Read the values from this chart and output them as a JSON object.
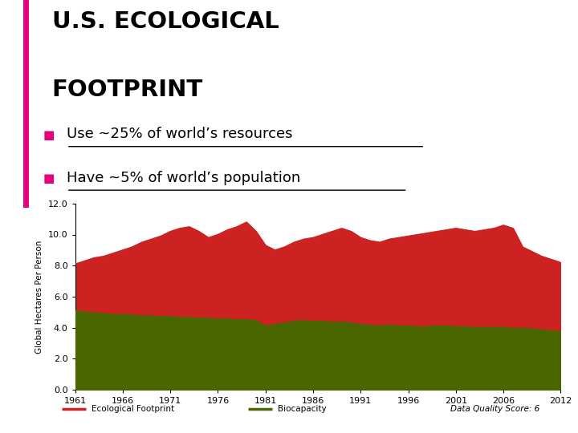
{
  "title_line1": "U.S. ECOLOGICAL",
  "title_line2": "FOOTPRINT",
  "bullet1": "Use ~25% of world’s resources",
  "bullet2": "Have ~5% of world’s population",
  "bullet_color": "#e6007e",
  "ylabel": "Global Hectares Per Person",
  "xlabel_ticks": [
    1961,
    1966,
    1971,
    1976,
    1981,
    1986,
    1991,
    1996,
    2001,
    2006,
    2012
  ],
  "ylim": [
    0.0,
    12.0
  ],
  "yticks": [
    0.0,
    2.0,
    4.0,
    6.0,
    8.0,
    10.0,
    12.0
  ],
  "legend_footprint_label": "Ecological Footprint",
  "legend_biocap_label": "Biocapacity",
  "data_quality_text": "Data Quality Score: 6",
  "footprint_color": "#cc2222",
  "biocapacity_color": "#4a6600",
  "years": [
    1961,
    1962,
    1963,
    1964,
    1965,
    1966,
    1967,
    1968,
    1969,
    1970,
    1971,
    1972,
    1973,
    1974,
    1975,
    1976,
    1977,
    1978,
    1979,
    1980,
    1981,
    1982,
    1983,
    1984,
    1985,
    1986,
    1987,
    1988,
    1989,
    1990,
    1991,
    1992,
    1993,
    1994,
    1995,
    1996,
    1997,
    1998,
    1999,
    2000,
    2001,
    2002,
    2003,
    2004,
    2005,
    2006,
    2007,
    2008,
    2009,
    2010,
    2011,
    2012
  ],
  "footprint": [
    8.1,
    8.3,
    8.5,
    8.6,
    8.8,
    9.0,
    9.2,
    9.5,
    9.7,
    9.9,
    10.2,
    10.4,
    10.5,
    10.2,
    9.8,
    10.0,
    10.3,
    10.5,
    10.8,
    10.2,
    9.3,
    9.0,
    9.2,
    9.5,
    9.7,
    9.8,
    10.0,
    10.2,
    10.4,
    10.2,
    9.8,
    9.6,
    9.5,
    9.7,
    9.8,
    9.9,
    10.0,
    10.1,
    10.2,
    10.3,
    10.4,
    10.3,
    10.2,
    10.3,
    10.4,
    10.6,
    10.4,
    9.2,
    8.9,
    8.6,
    8.4,
    8.2
  ],
  "biocapacity": [
    5.1,
    5.0,
    4.95,
    4.9,
    4.85,
    4.85,
    4.8,
    4.75,
    4.75,
    4.7,
    4.7,
    4.65,
    4.65,
    4.6,
    4.6,
    4.55,
    4.55,
    4.5,
    4.5,
    4.45,
    4.1,
    4.2,
    4.3,
    4.4,
    4.45,
    4.4,
    4.4,
    4.35,
    4.35,
    4.3,
    4.2,
    4.15,
    4.1,
    4.15,
    4.1,
    4.1,
    4.05,
    4.05,
    4.1,
    4.1,
    4.05,
    4.05,
    4.0,
    4.0,
    4.0,
    4.0,
    3.95,
    3.95,
    3.9,
    3.85,
    3.8,
    3.75
  ],
  "background_color": "#ffffff"
}
